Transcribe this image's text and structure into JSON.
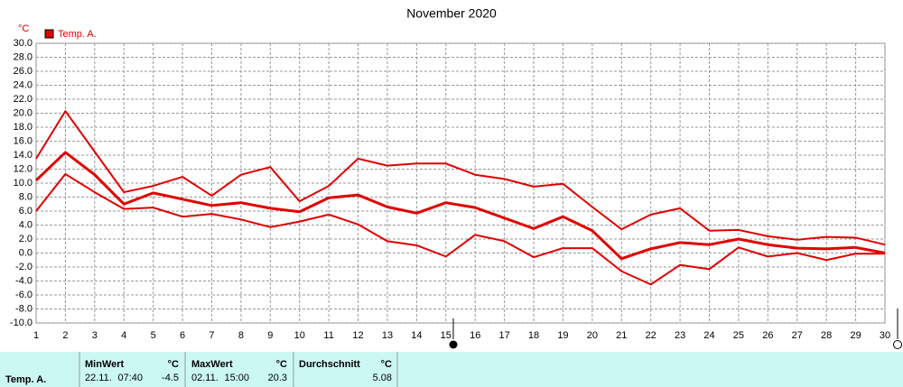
{
  "chart_data": {
    "type": "line",
    "title": "November 2020",
    "y_unit": "°C",
    "legend": "Temp. A.",
    "x": [
      1,
      2,
      3,
      4,
      5,
      6,
      7,
      8,
      9,
      10,
      11,
      12,
      13,
      14,
      15,
      16,
      17,
      18,
      19,
      20,
      21,
      22,
      23,
      24,
      25,
      26,
      27,
      28,
      29,
      30
    ],
    "xlim": [
      1,
      30
    ],
    "xticks": [
      1,
      2,
      3,
      4,
      5,
      6,
      7,
      8,
      9,
      10,
      11,
      12,
      13,
      14,
      15,
      16,
      17,
      18,
      19,
      20,
      21,
      22,
      23,
      24,
      25,
      26,
      27,
      28,
      29,
      30
    ],
    "ylim": [
      -10,
      30
    ],
    "yticks": [
      {
        "value": -10,
        "label": "-10.0"
      },
      {
        "value": -8,
        "label": "-8.0"
      },
      {
        "value": -6,
        "label": "-6.0"
      },
      {
        "value": -4,
        "label": "-4.0"
      },
      {
        "value": -2,
        "label": "-2.0"
      },
      {
        "value": 0,
        "label": "0.0"
      },
      {
        "value": 2,
        "label": "2.0"
      },
      {
        "value": 4,
        "label": "4.0"
      },
      {
        "value": 6,
        "label": "6.0"
      },
      {
        "value": 8,
        "label": "8.0"
      },
      {
        "value": 10,
        "label": "10.0"
      },
      {
        "value": 12,
        "label": "12.0"
      },
      {
        "value": 14,
        "label": "14.0"
      },
      {
        "value": 16,
        "label": "16.0"
      },
      {
        "value": 18,
        "label": "18.0"
      },
      {
        "value": 20,
        "label": "20.0"
      },
      {
        "value": 22,
        "label": "22.0"
      },
      {
        "value": 24,
        "label": "24.0"
      },
      {
        "value": 26,
        "label": "26.0"
      },
      {
        "value": 28,
        "label": "28.0"
      },
      {
        "value": 30,
        "label": "30.0"
      }
    ],
    "grid": true,
    "color": "#e00000",
    "series": [
      {
        "color": "#e00000",
        "width": 2,
        "values": [
          13.5,
          20.3,
          14.5,
          8.7,
          9.6,
          10.9,
          8.2,
          11.2,
          12.3,
          7.4,
          9.6,
          13.5,
          12.5,
          12.8,
          12.8,
          11.2,
          10.6,
          9.5,
          9.9,
          6.6,
          3.4,
          5.5,
          6.4,
          3.2,
          3.3,
          2.4,
          1.9,
          2.3,
          2.2,
          1.2
        ]
      },
      {
        "color": "#e00000",
        "width": 3,
        "values": [
          10.4,
          14.4,
          11.2,
          7.0,
          8.6,
          7.7,
          6.8,
          7.2,
          6.4,
          5.9,
          7.9,
          8.3,
          6.6,
          5.7,
          7.2,
          6.5,
          5.0,
          3.5,
          5.2,
          3.2,
          -0.8,
          0.6,
          1.5,
          1.2,
          2.0,
          1.2,
          0.7,
          0.6,
          0.8,
          0.0
        ]
      },
      {
        "color": "#e00000",
        "width": 2,
        "values": [
          6.0,
          11.3,
          8.7,
          6.3,
          6.5,
          5.2,
          5.6,
          4.8,
          3.7,
          4.5,
          5.5,
          4.1,
          1.7,
          1.1,
          -0.5,
          2.6,
          1.7,
          -0.6,
          0.7,
          0.7,
          -2.6,
          -4.5,
          -1.7,
          -2.3,
          0.8,
          -0.5,
          0.0,
          -1.0,
          -0.1,
          -0.1
        ]
      }
    ]
  },
  "table": {
    "header": [
      "MinWert",
      "°C",
      "MaxWert",
      "°C",
      "Durchschnitt",
      "°C"
    ],
    "rows": [
      [
        "Temp. A.",
        "22.11.",
        "07:40",
        -4.5,
        "02.11.",
        "15:00",
        20.3,
        5.08
      ]
    ]
  }
}
